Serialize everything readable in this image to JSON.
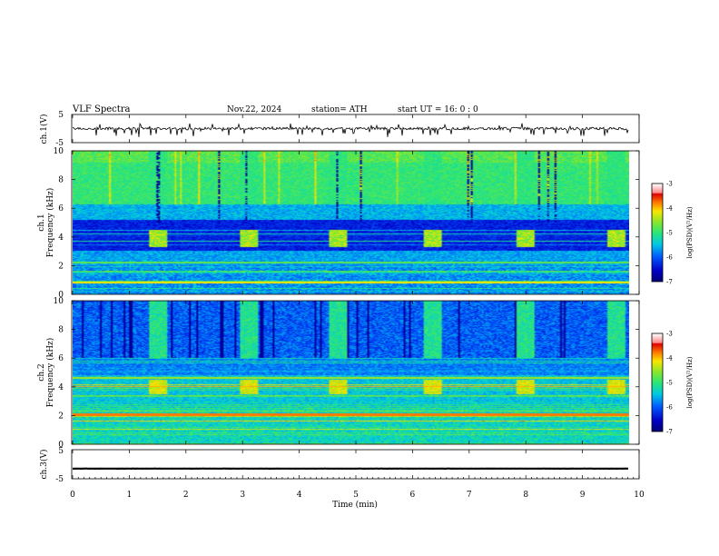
{
  "header": {
    "title": "VLF  Spectra",
    "date": "Nov.22, 2024",
    "station": "station= ATH",
    "start": "start  UT  =     16: 0   : 0"
  },
  "chart_data": [
    {
      "type": "line",
      "id": "ch1-waveform",
      "ylabel": "ch.1(V)",
      "ylim": [
        -5,
        5
      ],
      "yticks": [
        "5",
        "-5"
      ],
      "xlim": [
        0,
        10
      ],
      "baseline": 0,
      "description_values": "noisy waveform centred near 0 V with occasional spikes to about -2 V"
    },
    {
      "type": "heatmap",
      "id": "ch1-spectrogram",
      "ylabel": "ch.1\nFrequency  (kHz)",
      "ylim": [
        0,
        10
      ],
      "yticks": [
        "0",
        "2",
        "4",
        "6",
        "8",
        "10"
      ],
      "xlim": [
        0,
        10
      ],
      "bursts_min": [
        1.35,
        3.0,
        4.6,
        6.3,
        7.95,
        9.6
      ],
      "burst_band_khz": [
        3.3,
        4.5
      ],
      "colorbar": {
        "label": "log(PSD)(V²/Hz)",
        "ticks": [
          "-3",
          "-4",
          "-5",
          "-6",
          "-7"
        ],
        "range": [
          -7,
          -3
        ]
      }
    },
    {
      "type": "heatmap",
      "id": "ch2-spectrogram",
      "ylabel": "ch.2\nFrequency  (kHz)",
      "ylim": [
        0,
        10
      ],
      "yticks": [
        "0",
        "2",
        "4",
        "6",
        "8",
        "10"
      ],
      "xlim": [
        0,
        10
      ],
      "bursts_min": [
        1.35,
        3.0,
        4.6,
        6.3,
        7.95,
        9.6
      ],
      "burst_band_khz": [
        3.5,
        4.5
      ],
      "colorbar": {
        "label": "log(PSD)(V²/Hz)",
        "ticks": [
          "-3",
          "-4",
          "-5",
          "-6",
          "-7"
        ],
        "range": [
          -7,
          -3
        ]
      }
    },
    {
      "type": "line",
      "id": "ch3-waveform",
      "ylabel": "ch.3(V)",
      "ylim": [
        -5,
        5
      ],
      "yticks": [
        "5",
        "-5"
      ],
      "xlim": [
        0,
        10
      ],
      "baseline": -1.5
    }
  ],
  "x_axis": {
    "label": "Time  (min)",
    "ticks": [
      "0",
      "1",
      "2",
      "3",
      "4",
      "5",
      "6",
      "7",
      "8",
      "9",
      "10"
    ]
  },
  "colors": {
    "low": "#00008b",
    "mid": "#00c8c8",
    "high": "#ff0000"
  }
}
